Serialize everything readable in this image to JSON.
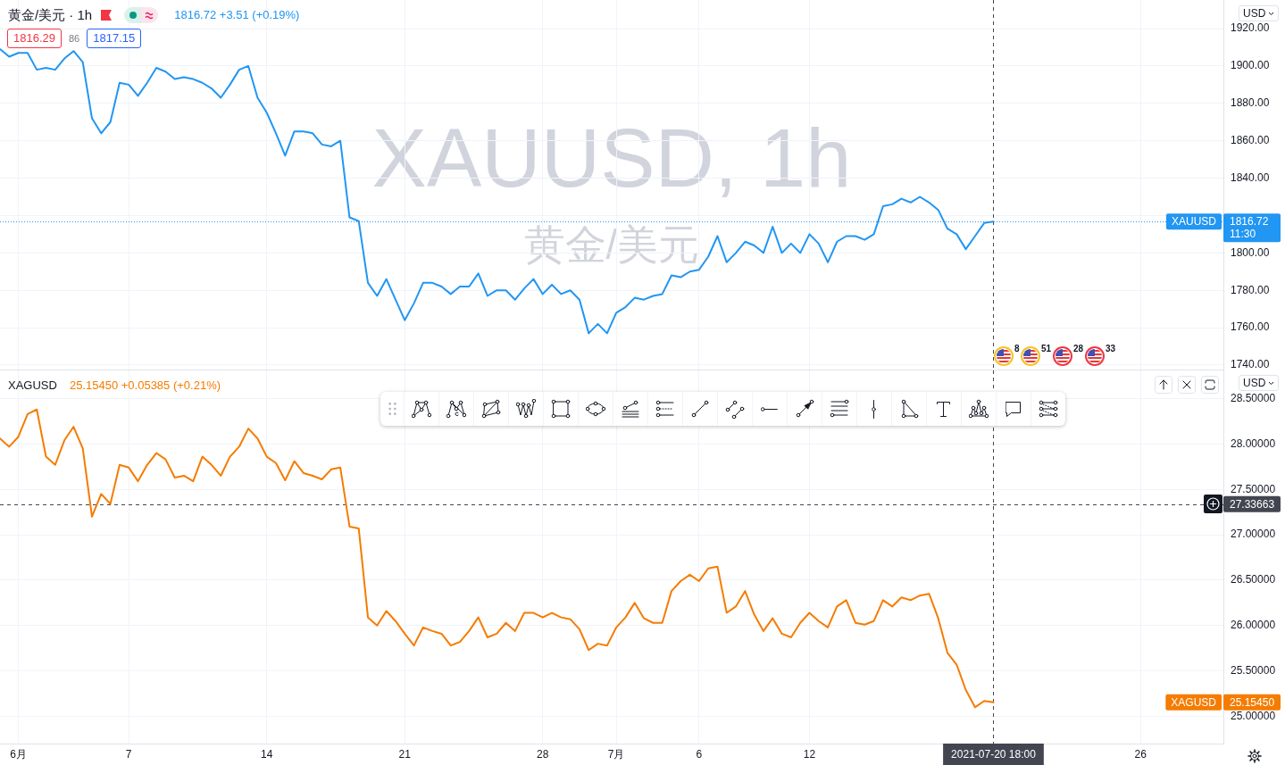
{
  "chart_data": [
    {
      "type": "line",
      "title": "黄金/美元 · 1h",
      "subtitle": "1816.72 +3.51 (+0.19%)",
      "ylabel": "USD",
      "categories": [
        null,
        null,
        null,
        null,
        null,
        null,
        null,
        null,
        null,
        null,
        null,
        null,
        null,
        null,
        null,
        null,
        null,
        null,
        null,
        null,
        null,
        null,
        null,
        null,
        null,
        null,
        null,
        null,
        null,
        null,
        null,
        null,
        null,
        null,
        null,
        null,
        null,
        null,
        null,
        null,
        null,
        null,
        null,
        null,
        null,
        null,
        null,
        null,
        null,
        null,
        null,
        null,
        null,
        null,
        null,
        null,
        null,
        null,
        null,
        null,
        null,
        null,
        null,
        null,
        null,
        null,
        null,
        null,
        null,
        null,
        null,
        null,
        null,
        null,
        null,
        null,
        null,
        null,
        null,
        null,
        null,
        null,
        null,
        null,
        null,
        null,
        null,
        null,
        null,
        null,
        null,
        null,
        null,
        null,
        null,
        null,
        null,
        null,
        null,
        null,
        null,
        null,
        null,
        null,
        null,
        null,
        null,
        null,
        null,
        null,
        null,
        null,
        null,
        null,
        null,
        null,
        null,
        null,
        null,
        null,
        null,
        null,
        null,
        null,
        null,
        null,
        null,
        null,
        null,
        null,
        null,
        null,
        null,
        null
      ],
      "series": [
        {
          "name": "XAUUSD",
          "color": "#2196f3",
          "values": [
            1909,
            1905,
            1907,
            1907,
            1898,
            1899,
            1898,
            1904,
            1908,
            1902,
            1872,
            1864,
            1870,
            1891,
            1890,
            1884,
            1891,
            1899,
            1897,
            1893,
            1894,
            1893,
            1891,
            1888,
            1883,
            1890,
            1898,
            1900,
            1883,
            1875,
            1864,
            1852,
            1865,
            1865,
            1864,
            1858,
            1857,
            1860,
            1819,
            1817,
            1784,
            1777,
            1786,
            1775,
            1764,
            1773,
            1784,
            1784,
            1782,
            1778,
            1782,
            1782,
            1789,
            1777,
            1780,
            1780,
            1775,
            1781,
            1786,
            1778,
            1783,
            1778,
            1780,
            1775,
            1757,
            1762,
            1757,
            1768,
            1771,
            1776,
            1775,
            1777,
            1778,
            1788,
            1787,
            1790,
            1791,
            1798,
            1809,
            1795,
            1800,
            1806,
            1804,
            1800,
            1814,
            1800,
            1805,
            1800,
            1810,
            1805,
            1795,
            1806,
            1809,
            1809,
            1807,
            1810,
            1825,
            1826,
            1829,
            1827,
            1830,
            1827,
            1823,
            1813,
            1810,
            1802,
            1809,
            1816,
            1816.72,
            null,
            null,
            null,
            null,
            null,
            null,
            null,
            null,
            null,
            null,
            null,
            null,
            null,
            null,
            null,
            null,
            null,
            null,
            null,
            null,
            null,
            null,
            null,
            null,
            null
          ]
        }
      ],
      "ylim": [
        1737.6,
        1935.3
      ],
      "yticks": [
        {
          "value": 1740,
          "label": "1740.00"
        },
        {
          "value": 1760,
          "label": "1760.00"
        },
        {
          "value": 1780,
          "label": "1780.00"
        },
        {
          "value": 1800,
          "label": "1800.00"
        },
        {
          "value": 1820,
          "label": null
        },
        {
          "value": 1840,
          "label": "1840.00"
        },
        {
          "value": 1860,
          "label": "1860.00"
        },
        {
          "value": 1880,
          "label": "1880.00"
        },
        {
          "value": 1900,
          "label": "1900.00"
        },
        {
          "value": 1920,
          "label": "1920.00"
        }
      ],
      "grid": true,
      "tick_labels": "y",
      "ref_lines": [
        {
          "axis": "y",
          "value": 1816.72,
          "label": "1816.72",
          "color": "#2196f3",
          "line_style": "dotted"
        }
      ],
      "annotations": [
        "XAUUSD, 1h",
        "黄金/美元",
        "1816.29",
        "86",
        "1817.15",
        "11:30",
        "8",
        "51",
        "28",
        "33"
      ]
    },
    {
      "type": "line",
      "title": "XAGUSD",
      "subtitle": "25.15450 +0.05385 (+0.21%)",
      "ylabel": "USD",
      "categories": [
        null,
        null,
        "6月",
        null,
        null,
        null,
        null,
        null,
        null,
        null,
        null,
        null,
        null,
        null,
        "7",
        null,
        null,
        null,
        null,
        null,
        null,
        null,
        null,
        null,
        null,
        null,
        null,
        null,
        null,
        "14",
        null,
        null,
        null,
        null,
        null,
        null,
        null,
        null,
        null,
        null,
        null,
        null,
        null,
        null,
        "21",
        null,
        null,
        null,
        null,
        null,
        null,
        null,
        null,
        null,
        null,
        null,
        null,
        null,
        null,
        "28",
        null,
        null,
        null,
        null,
        null,
        null,
        null,
        "7月",
        null,
        null,
        null,
        null,
        null,
        null,
        null,
        null,
        "6",
        null,
        null,
        null,
        null,
        null,
        null,
        null,
        null,
        null,
        null,
        null,
        "12",
        null,
        null,
        null,
        null,
        null,
        null,
        null,
        null,
        null,
        null,
        null,
        null,
        null,
        null,
        null,
        null,
        null,
        null,
        null,
        "2021-07-20 18:00",
        null,
        null,
        null,
        null,
        null,
        null,
        null,
        null,
        null,
        null,
        null,
        null,
        null,
        null,
        null,
        "26",
        null,
        null,
        null,
        null,
        null,
        null,
        null,
        null,
        null
      ],
      "series": [
        {
          "name": "XAGUSD",
          "color": "#f57c00",
          "values": [
            28.06,
            27.97,
            28.08,
            28.33,
            28.38,
            27.86,
            27.77,
            28.04,
            28.19,
            27.95,
            27.2,
            27.45,
            27.34,
            27.77,
            27.74,
            27.59,
            27.77,
            27.9,
            27.83,
            27.63,
            27.65,
            27.59,
            27.86,
            27.77,
            27.65,
            27.86,
            27.97,
            28.17,
            28.06,
            27.86,
            27.79,
            27.6,
            27.81,
            27.68,
            27.65,
            27.61,
            27.72,
            27.74,
            27.09,
            27.07,
            26.09,
            26.0,
            26.16,
            26.05,
            25.91,
            25.78,
            25.98,
            25.94,
            25.91,
            25.78,
            25.82,
            25.94,
            26.09,
            25.87,
            25.91,
            26.03,
            25.94,
            26.14,
            26.14,
            26.09,
            26.14,
            26.09,
            26.07,
            25.96,
            25.73,
            25.8,
            25.78,
            25.98,
            26.09,
            26.25,
            26.08,
            26.03,
            26.03,
            26.38,
            26.49,
            26.56,
            26.49,
            26.63,
            26.65,
            26.14,
            26.21,
            26.38,
            26.12,
            25.94,
            26.08,
            25.91,
            25.87,
            26.03,
            26.14,
            26.05,
            25.98,
            26.21,
            26.28,
            26.03,
            26.01,
            26.05,
            26.28,
            26.21,
            26.31,
            26.28,
            26.33,
            26.35,
            26.08,
            25.7,
            25.57,
            25.29,
            25.1,
            25.17,
            25.1545,
            null,
            null,
            null,
            null,
            null,
            null,
            null,
            null,
            null,
            null,
            null,
            null,
            null,
            null,
            null,
            null,
            null,
            null,
            null,
            null,
            null,
            null,
            null,
            null,
            null
          ]
        }
      ],
      "ylim": [
        24.7,
        28.81
      ],
      "yticks": [
        {
          "value": 25,
          "label": "25.00000"
        },
        {
          "value": 25.5,
          "label": "25.50000"
        },
        {
          "value": 26,
          "label": "26.00000"
        },
        {
          "value": 26.5,
          "label": "26.50000"
        },
        {
          "value": 27,
          "label": "27.00000"
        },
        {
          "value": 27.5,
          "label": "27.50000"
        },
        {
          "value": 28,
          "label": "28.00000"
        },
        {
          "value": 28.5,
          "label": "28.50000"
        }
      ],
      "grid": true,
      "ref_lines": [
        {
          "axis": "y",
          "value": 27.33663,
          "label": "27.33663",
          "color": "#434651",
          "line_style": "dashed"
        },
        {
          "axis": "x",
          "value": "2021-07-20 18:00",
          "color": "#434651",
          "line_style": "dashed"
        }
      ],
      "annotations": [
        "25.15450"
      ]
    }
  ]
}
